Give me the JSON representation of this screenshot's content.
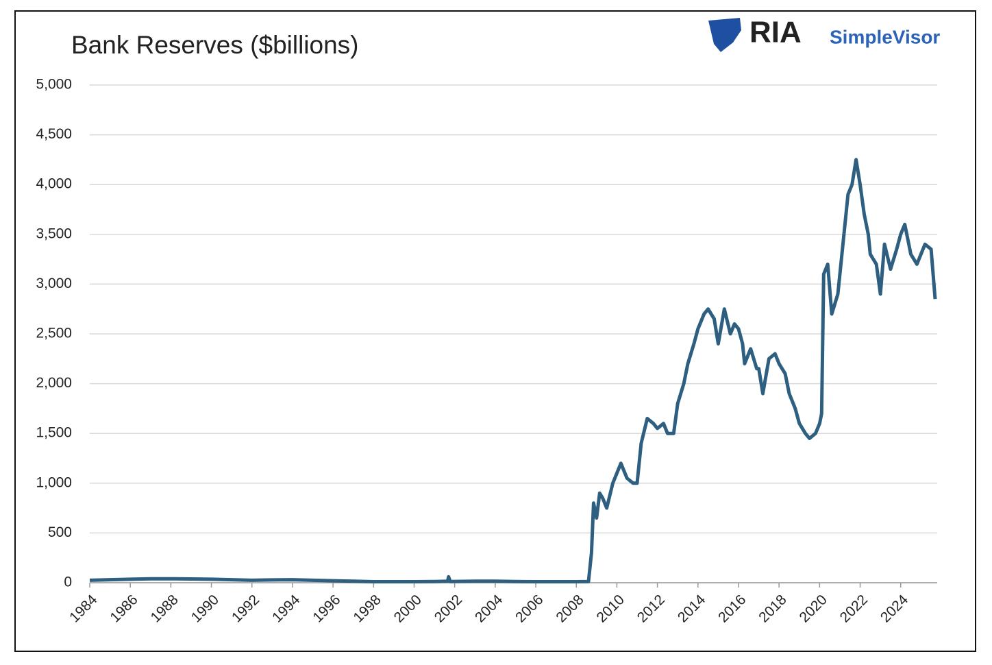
{
  "chart_data": {
    "type": "line",
    "title": "Bank Reserves ($billions)",
    "logo_text": "RIA",
    "logo_subtext": "SimpleVisor",
    "color": "#2e5f80",
    "grid": true,
    "x": [
      1984,
      1985,
      1986,
      1987,
      1988,
      1989,
      1990,
      1991,
      1992,
      1993,
      1994,
      1995,
      1996,
      1997,
      1998,
      1999,
      2000,
      2001,
      2001.65,
      2001.7,
      2001.78,
      2003,
      2004,
      2005,
      2006,
      2007,
      2008,
      2008.6,
      2008.75,
      2008.85,
      2009.0,
      2009.15,
      2009.3,
      2009.5,
      2009.8,
      2010.0,
      2010.2,
      2010.5,
      2010.8,
      2011.0,
      2011.2,
      2011.5,
      2011.8,
      2012.0,
      2012.3,
      2012.5,
      2012.8,
      2013.0,
      2013.3,
      2013.5,
      2013.8,
      2014.0,
      2014.3,
      2014.5,
      2014.8,
      2015.0,
      2015.3,
      2015.6,
      2015.8,
      2016.0,
      2016.2,
      2016.3,
      2016.6,
      2016.9,
      2017.0,
      2017.2,
      2017.5,
      2017.8,
      2018.0,
      2018.3,
      2018.5,
      2018.8,
      2019.0,
      2019.3,
      2019.5,
      2019.8,
      2020.0,
      2020.1,
      2020.2,
      2020.4,
      2020.6,
      2020.9,
      2021.2,
      2021.4,
      2021.6,
      2021.8,
      2022.0,
      2022.2,
      2022.4,
      2022.5,
      2022.8,
      2023.0,
      2023.2,
      2023.5,
      2023.8,
      2024.0,
      2024.2,
      2024.5,
      2024.8,
      2025.0,
      2025.2,
      2025.5,
      2025.7
    ],
    "values": [
      25,
      30,
      35,
      40,
      40,
      38,
      35,
      30,
      25,
      28,
      30,
      25,
      20,
      15,
      10,
      10,
      10,
      12,
      15,
      60,
      12,
      15,
      15,
      12,
      10,
      10,
      10,
      12,
      300,
      800,
      650,
      900,
      850,
      750,
      1000,
      1100,
      1200,
      1050,
      1000,
      1000,
      1400,
      1650,
      1600,
      1550,
      1600,
      1500,
      1500,
      1800,
      2000,
      2200,
      2400,
      2550,
      2700,
      2750,
      2650,
      2400,
      2750,
      2500,
      2600,
      2550,
      2400,
      2200,
      2350,
      2150,
      2150,
      1900,
      2250,
      2300,
      2200,
      2100,
      1900,
      1750,
      1600,
      1500,
      1450,
      1500,
      1600,
      1700,
      3100,
      3200,
      2700,
      2900,
      3500,
      3900,
      4000,
      4250,
      4000,
      3700,
      3500,
      3300,
      3200,
      2900,
      3400,
      3150,
      3350,
      3500,
      3600,
      3300,
      3200,
      3300,
      3400,
      3350,
      2850
    ],
    "xlim": [
      1984,
      2025.8
    ],
    "xticks": [
      1984,
      1986,
      1988,
      1990,
      1992,
      1994,
      1996,
      1998,
      2000,
      2002,
      2004,
      2006,
      2008,
      2010,
      2012,
      2014,
      2016,
      2018,
      2020,
      2022,
      2024
    ],
    "ylim": [
      0,
      5000
    ],
    "yticks": [
      0,
      500,
      {
        "value": 1000,
        "label": "1,000"
      },
      {
        "value": 1500,
        "label": "1,500"
      },
      {
        "value": 2000,
        "label": "2,000"
      },
      {
        "value": 2500,
        "label": "2,500"
      },
      {
        "value": 3000,
        "label": "3,000"
      },
      {
        "value": 3500,
        "label": "3,500"
      },
      {
        "value": 4000,
        "label": "4,000"
      },
      {
        "value": 4500,
        "label": "4,500"
      },
      {
        "value": 5000,
        "label": "5,000"
      }
    ]
  }
}
